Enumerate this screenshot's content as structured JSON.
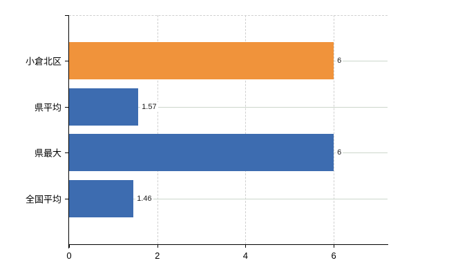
{
  "chart_data": {
    "type": "bar",
    "orientation": "horizontal",
    "title": "",
    "categories": [
      "小倉北区",
      "県平均",
      "県最大",
      "全国平均"
    ],
    "values": [
      6,
      1.57,
      6,
      1.46
    ],
    "value_labels": [
      "6",
      "1.57",
      "6",
      "1.46"
    ],
    "bar_colors": [
      "#F0933B",
      "#3D6CB0",
      "#3D6CB0",
      "#3D6CB0"
    ],
    "x_ticks": [
      0,
      2,
      4,
      6
    ],
    "x_tick_labels": [
      "0",
      "2",
      "4",
      "6"
    ],
    "xlim": [
      0,
      7.22
    ],
    "grid": true,
    "legend_position": "none",
    "style": {
      "highlight_bar_color": "#F0933B",
      "default_bar_color": "#3D6CB0",
      "h_gridline_color": "#CCD6CB",
      "v_gridline_color": "#CFCFCF",
      "axis_color": "#000000",
      "text_color": "#1A1A1A"
    }
  }
}
